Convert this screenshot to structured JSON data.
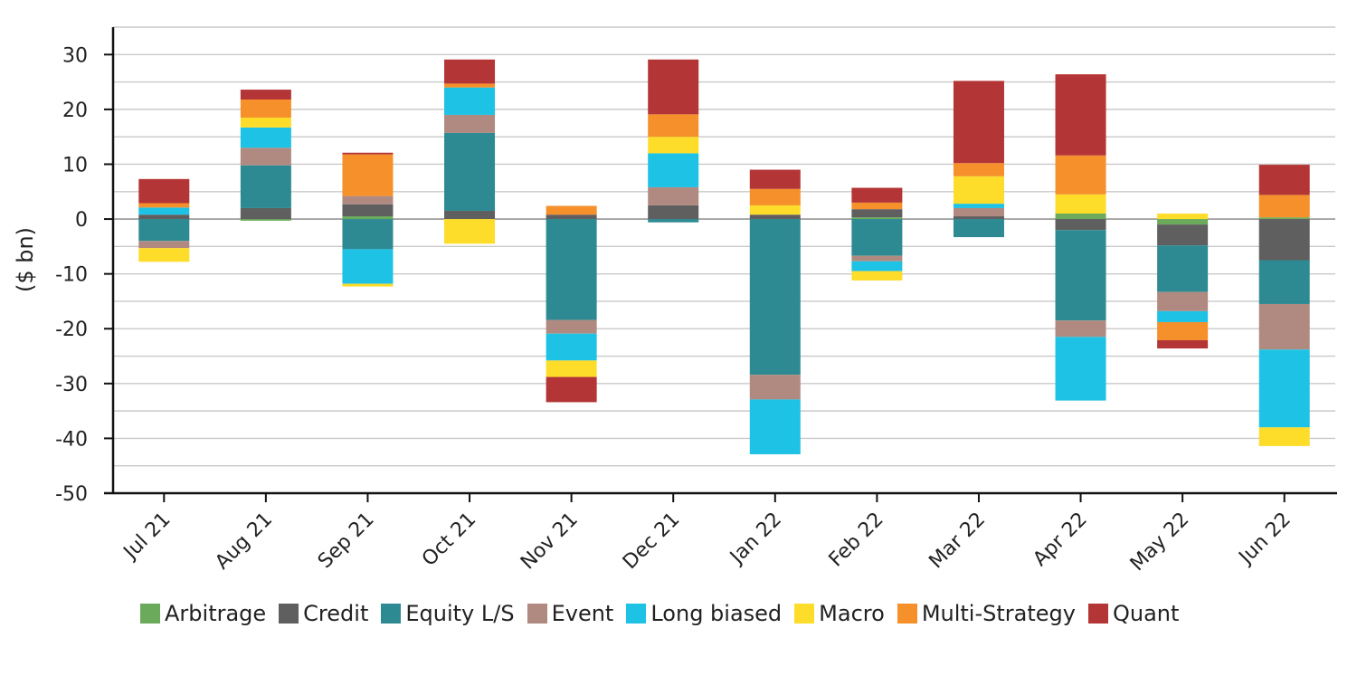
{
  "chart_data": {
    "type": "bar",
    "stacked": true,
    "ylabel": "($ bn)",
    "xlabel": "",
    "ylim": [
      -50,
      35
    ],
    "yticks": [
      30,
      20,
      10,
      0,
      -10,
      -20,
      -30,
      -40,
      -50
    ],
    "grid": true,
    "legend_position": "bottom",
    "categories": [
      "Jul 21",
      "Aug 21",
      "Sep 21",
      "Oct 21",
      "Nov 21",
      "Dec 21",
      "Jan 22",
      "Feb 22",
      "Mar 22",
      "Apr 22",
      "May 22",
      "Jun 22"
    ],
    "series": [
      {
        "name": "Arbitrage",
        "color": "#6aaa5a",
        "values": [
          0,
          -0.3,
          0.5,
          0,
          0,
          0,
          0,
          0.3,
          0,
          1.0,
          -1.0,
          0.3
        ]
      },
      {
        "name": "Credit",
        "color": "#5f5f5f",
        "values": [
          0.8,
          2.0,
          2.2,
          1.5,
          0.8,
          2.5,
          0.8,
          1.5,
          0.5,
          -2.0,
          -3.8,
          -7.5
        ]
      },
      {
        "name": "Equity L/S",
        "color": "#2e8a92",
        "values": [
          -4.0,
          7.8,
          -5.5,
          14.2,
          -18.4,
          -0.6,
          -28.4,
          -6.7,
          -3.3,
          -16.5,
          -8.5,
          -8.0
        ]
      },
      {
        "name": "Event",
        "color": "#b08a80",
        "values": [
          -1.3,
          3.2,
          1.5,
          3.3,
          -2.5,
          3.3,
          -4.5,
          -1.0,
          1.5,
          -3.0,
          -3.5,
          -8.3
        ]
      },
      {
        "name": "Long biased",
        "color": "#1ec2e4",
        "values": [
          1.3,
          3.7,
          -6.3,
          5.0,
          -4.9,
          6.2,
          -10.0,
          -1.8,
          0.8,
          -11.6,
          -2.0,
          -14.2
        ]
      },
      {
        "name": "Macro",
        "color": "#fddc2a",
        "values": [
          -2.5,
          1.8,
          -0.5,
          -4.5,
          -3.0,
          3.0,
          1.7,
          -1.7,
          5.0,
          3.5,
          1.0,
          -3.4
        ]
      },
      {
        "name": "Multi-Strategy",
        "color": "#f5902a",
        "values": [
          0.8,
          3.3,
          7.6,
          0.7,
          1.6,
          4.1,
          3.0,
          1.2,
          2.4,
          7.1,
          -3.3,
          4.1
        ]
      },
      {
        "name": "Quant",
        "color": "#b43536",
        "values": [
          4.4,
          1.8,
          0.3,
          4.4,
          -4.6,
          10.0,
          3.5,
          2.7,
          15.0,
          14.8,
          -1.5,
          5.5
        ]
      }
    ]
  }
}
